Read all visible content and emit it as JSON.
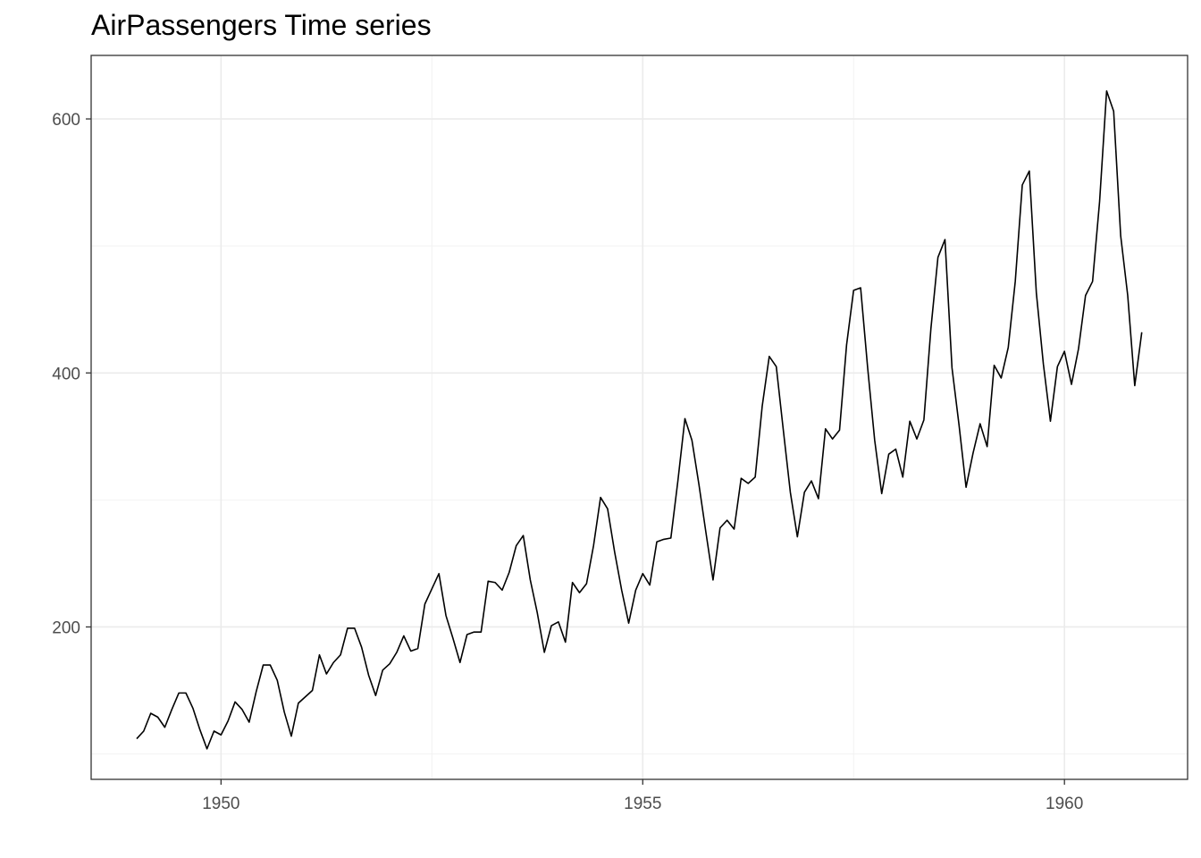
{
  "chart_data": {
    "type": "line",
    "title": "AirPassengers Time series",
    "xlabel": "",
    "ylabel": "",
    "xlim": [
      1948.46,
      1961.46
    ],
    "ylim": [
      80,
      650
    ],
    "x_ticks": [
      1950,
      1955,
      1960
    ],
    "x_tick_labels": [
      "1950",
      "1955",
      "1960"
    ],
    "y_ticks": [
      200,
      400,
      600
    ],
    "y_tick_labels": [
      "200",
      "400",
      "600"
    ],
    "x_minor_ticks": [
      1952.5,
      1957.5
    ],
    "y_minor_ticks": [
      100,
      300,
      500
    ],
    "grid": true,
    "start_year": 1949,
    "frequency": 12,
    "series": [
      {
        "color": "#000000",
        "values": [
          112,
          118,
          132,
          129,
          121,
          135,
          148,
          148,
          136,
          119,
          104,
          118,
          115,
          126,
          141,
          135,
          125,
          149,
          170,
          170,
          158,
          133,
          114,
          140,
          145,
          150,
          178,
          163,
          172,
          178,
          199,
          199,
          184,
          162,
          146,
          166,
          171,
          180,
          193,
          181,
          183,
          218,
          230,
          242,
          209,
          191,
          172,
          194,
          196,
          196,
          236,
          235,
          229,
          243,
          264,
          272,
          237,
          211,
          180,
          201,
          204,
          188,
          235,
          227,
          234,
          264,
          302,
          293,
          259,
          229,
          203,
          229,
          242,
          233,
          267,
          269,
          270,
          315,
          364,
          347,
          312,
          274,
          237,
          278,
          284,
          277,
          317,
          313,
          318,
          374,
          413,
          405,
          355,
          306,
          271,
          306,
          315,
          301,
          356,
          348,
          355,
          422,
          465,
          467,
          404,
          347,
          305,
          336,
          340,
          318,
          362,
          348,
          363,
          435,
          491,
          505,
          404,
          359,
          310,
          337,
          360,
          342,
          406,
          396,
          420,
          472,
          548,
          559,
          463,
          407,
          362,
          405,
          417,
          391,
          419,
          461,
          472,
          535,
          622,
          606,
          508,
          461,
          390,
          432
        ]
      }
    ]
  }
}
